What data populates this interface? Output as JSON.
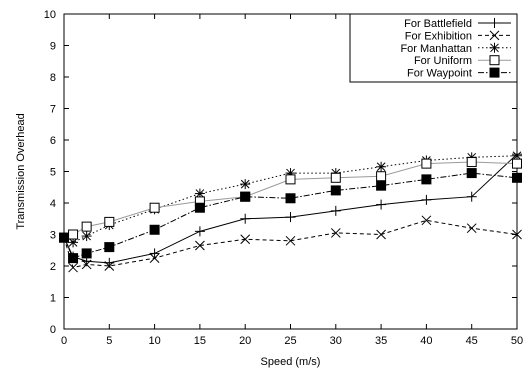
{
  "chart_data": {
    "type": "line",
    "title": "",
    "xlabel": "Speed (m/s)",
    "ylabel": "Transmission Overhead",
    "xlim": [
      0,
      50
    ],
    "ylim": [
      0,
      10
    ],
    "x_ticks": [
      0,
      5,
      10,
      15,
      20,
      25,
      30,
      35,
      40,
      45,
      50
    ],
    "y_ticks": [
      0,
      1,
      2,
      3,
      4,
      5,
      6,
      7,
      8,
      9,
      10
    ],
    "grid": false,
    "legend_position": "top-right",
    "series": [
      {
        "name": "For Battlefield",
        "marker": "plus",
        "line_style": "solid",
        "color": "#000000",
        "x": [
          0,
          1,
          2.5,
          5,
          10,
          15,
          20,
          25,
          30,
          35,
          40,
          45,
          50
        ],
        "y": [
          2.9,
          2.3,
          2.15,
          2.1,
          2.4,
          3.1,
          3.5,
          3.55,
          3.75,
          3.95,
          4.1,
          4.2,
          5.55
        ]
      },
      {
        "name": "For Exhibition",
        "marker": "x",
        "line_style": "dashed",
        "color": "#000000",
        "x": [
          0,
          1,
          2.5,
          5,
          10,
          15,
          20,
          25,
          30,
          35,
          40,
          45,
          50
        ],
        "y": [
          2.9,
          1.95,
          2.05,
          2.0,
          2.25,
          2.65,
          2.85,
          2.8,
          3.05,
          3.0,
          3.45,
          3.2,
          3.0
        ]
      },
      {
        "name": "For Manhattan",
        "marker": "star",
        "line_style": "dotted",
        "color": "#000000",
        "x": [
          0,
          1,
          2.5,
          5,
          10,
          15,
          20,
          25,
          30,
          35,
          40,
          45,
          50
        ],
        "y": [
          2.9,
          2.75,
          2.95,
          3.3,
          3.8,
          4.3,
          4.6,
          4.95,
          4.95,
          5.15,
          5.35,
          5.45,
          5.5
        ]
      },
      {
        "name": "For Uniform",
        "marker": "open-square",
        "line_style": "solid",
        "color": "#9a9a9a",
        "x": [
          0,
          1,
          2.5,
          5,
          10,
          15,
          20,
          25,
          30,
          35,
          40,
          45,
          50
        ],
        "y": [
          2.9,
          3.0,
          3.25,
          3.4,
          3.85,
          4.05,
          4.2,
          4.75,
          4.8,
          4.85,
          5.25,
          5.3,
          5.25
        ]
      },
      {
        "name": "For Waypoint",
        "marker": "filled-square",
        "line_style": "dashdot",
        "color": "#000000",
        "x": [
          0,
          1,
          2.5,
          5,
          10,
          15,
          20,
          25,
          30,
          35,
          40,
          45,
          50
        ],
        "y": [
          2.9,
          2.25,
          2.4,
          2.6,
          3.15,
          3.85,
          4.2,
          4.15,
          4.4,
          4.55,
          4.75,
          4.95,
          4.8
        ]
      }
    ]
  }
}
